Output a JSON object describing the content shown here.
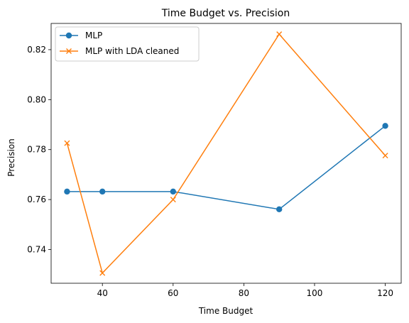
{
  "chart_data": {
    "type": "line",
    "title": "Time Budget vs. Precision",
    "xlabel": "Time Budget",
    "ylabel": "Precision",
    "xlim": [
      25.5,
      124.5
    ],
    "ylim": [
      0.7265,
      0.8305
    ],
    "xticks": [
      40,
      60,
      80,
      100,
      120
    ],
    "yticks": [
      0.74,
      0.76,
      0.78,
      0.8,
      0.82
    ],
    "ytick_labels": [
      "0.74",
      "0.76",
      "0.78",
      "0.80",
      "0.82"
    ],
    "grid": false,
    "legend_position": "top-left",
    "series": [
      {
        "name": "MLP",
        "color": "#1f77b4",
        "marker": "circle",
        "x": [
          30,
          40,
          60,
          90,
          120
        ],
        "y": [
          0.7632,
          0.7632,
          0.7632,
          0.7561,
          0.7895
        ]
      },
      {
        "name": "MLP with LDA cleaned",
        "color": "#ff7f0e",
        "marker": "x",
        "x": [
          30,
          40,
          60,
          90,
          120
        ],
        "y": [
          0.7826,
          0.7306,
          0.76,
          0.8262,
          0.7776
        ]
      }
    ]
  }
}
